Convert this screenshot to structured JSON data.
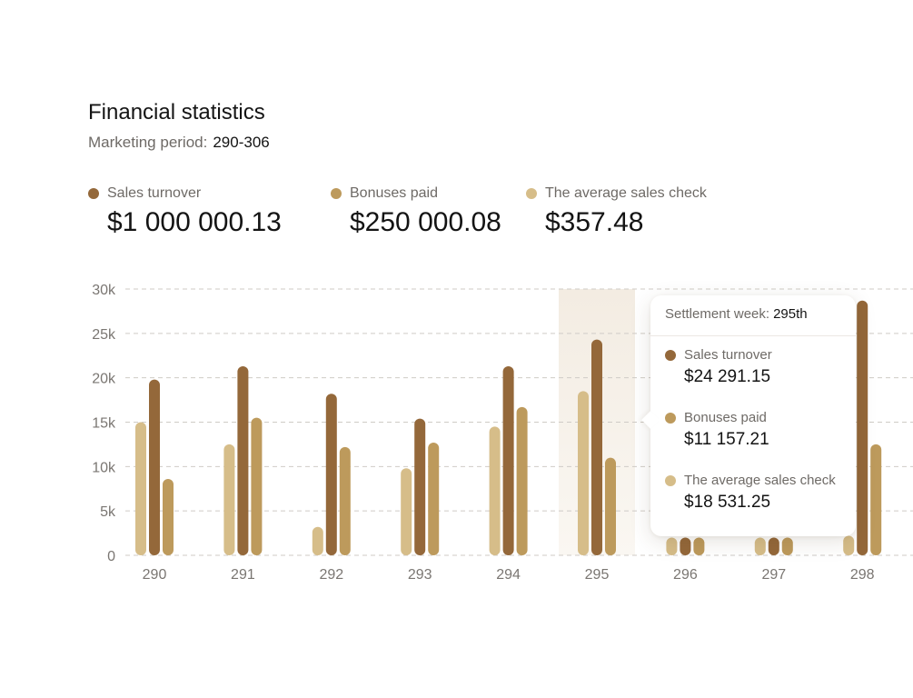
{
  "header": {
    "title": "Financial statistics",
    "period_label": "Marketing period:",
    "period_value": "290-306"
  },
  "stats": [
    {
      "label": "Sales turnover",
      "value": "$1 000 000.13",
      "color": "#94683a"
    },
    {
      "label": "Bonuses paid",
      "value": "$250 000.08",
      "color": "#bd9a5c"
    },
    {
      "label": "The average sales check",
      "value": "$357.48",
      "color": "#d6bd89"
    }
  ],
  "tooltip": {
    "week_label": "Settlement week:",
    "week_value": "295th",
    "items": [
      {
        "label": "Sales turnover",
        "value": "$24 291.15",
        "color": "#94683a"
      },
      {
        "label": "Bonuses paid",
        "value": "$11 157.21",
        "color": "#bd9a5c"
      },
      {
        "label": "The average sales check",
        "value": "$18 531.25",
        "color": "#d6bd89"
      }
    ]
  },
  "chart_data": {
    "type": "bar",
    "categories": [
      "290",
      "291",
      "292",
      "293",
      "294",
      "295",
      "296",
      "297",
      "298"
    ],
    "ylim": [
      0,
      30000
    ],
    "yticks": [
      "0",
      "5k",
      "10k",
      "15k",
      "20k",
      "25k",
      "30k"
    ],
    "grid": true,
    "highlighted_category": "295",
    "series": [
      {
        "name": "The average sales check",
        "color": "#d6bd89",
        "values": [
          15000,
          12500,
          3200,
          9800,
          14500,
          18500,
          2000,
          2000,
          2200
        ]
      },
      {
        "name": "Sales turnover",
        "color": "#94683a",
        "values": [
          19800,
          21300,
          18200,
          15400,
          21300,
          24300,
          2000,
          2000,
          28700
        ]
      },
      {
        "name": "Bonuses paid",
        "color": "#bd9a5c",
        "values": [
          8600,
          15500,
          12200,
          12700,
          16700,
          11000,
          2000,
          2000,
          12500
        ]
      }
    ]
  }
}
